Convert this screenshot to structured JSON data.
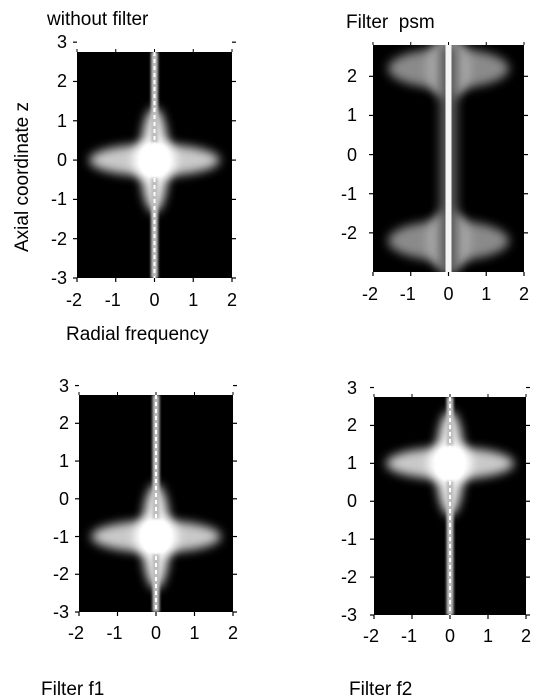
{
  "chart_data": [
    {
      "type": "heatmap",
      "title": "without filter",
      "xlabel": "Radial frequency",
      "ylabel": "Axial coordinate z",
      "xlim": [
        -2,
        2
      ],
      "ylim": [
        -3,
        3
      ],
      "x_ticks": [
        "-2",
        "-1",
        "0",
        "1",
        "2"
      ],
      "y_ticks": [
        "3",
        "2",
        "1",
        "0",
        "-1",
        "-2",
        "-3"
      ],
      "colormap": "gray",
      "peak_z": 0,
      "pattern": "star-shaped bright core centered at z = 0 with a thin bright vertical line along radial frequency 0"
    },
    {
      "type": "heatmap",
      "title": "Filter  psm",
      "xlabel": "",
      "ylabel": "",
      "xlim": [
        -2,
        2
      ],
      "ylim": [
        -3,
        3
      ],
      "x_ticks": [
        "-2",
        "-1",
        "0",
        "1",
        "2"
      ],
      "y_ticks": [
        "2",
        "1",
        "0",
        "-1",
        "-2"
      ],
      "colormap": "gray",
      "peak_z": [
        -2.2,
        2.2
      ],
      "pattern": "bright vertical line along radial frequency 0 with diffuse blobs near z = 2.2 and z = -2.2"
    },
    {
      "type": "heatmap",
      "title": "Filter f1",
      "xlabel": "",
      "ylabel": "",
      "xlim": [
        -2,
        2
      ],
      "ylim": [
        -3,
        3
      ],
      "x_ticks": [
        "-2",
        "-1",
        "0",
        "1",
        "2"
      ],
      "y_ticks": [
        "3",
        "2",
        "1",
        "0",
        "-1",
        "-2",
        "-3"
      ],
      "colormap": "gray",
      "peak_z": -1,
      "pattern": "star-shaped bright core centered at z = -1"
    },
    {
      "type": "heatmap",
      "title": "Filter f2",
      "xlabel": "",
      "ylabel": "",
      "xlim": [
        -2,
        2
      ],
      "ylim": [
        -3,
        3
      ],
      "x_ticks": [
        "-2",
        "-1",
        "0",
        "1",
        "2"
      ],
      "y_ticks": [
        "3",
        "2",
        "1",
        "0",
        "-1",
        "-2",
        "-3"
      ],
      "colormap": "gray",
      "peak_z": 1,
      "pattern": "star-shaped bright core centered at z = 1"
    }
  ]
}
